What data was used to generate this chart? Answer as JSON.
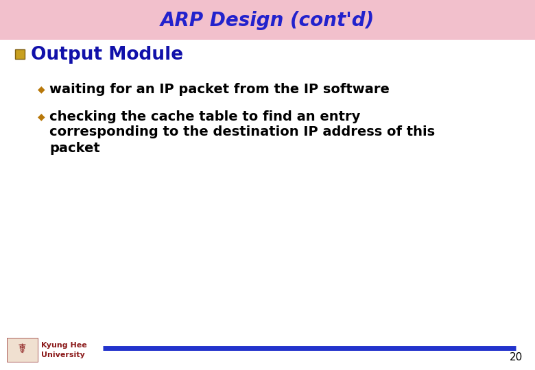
{
  "title": "ARP Design (cont'd)",
  "title_color": "#2222CC",
  "title_bg_color": "#F2C0CC",
  "title_fontsize": 20,
  "bg_color": "#FFFFFF",
  "heading": "Output Module",
  "heading_color": "#1111AA",
  "heading_fontsize": 19,
  "heading_bullet_color": "#C8A020",
  "bullet_color": "#B8780A",
  "bullet_points_line1": "waiting for an IP packet from the IP software",
  "bullet_points_line2_l1": "checking the cache table to find an entry",
  "bullet_points_line2_l2": "corresponding to the destination IP address of this",
  "bullet_points_line2_l3": "packet",
  "bullet_fontsize": 14,
  "footer_line_color": "#2233CC",
  "footer_text": "20",
  "footer_text_color": "#000000",
  "university_text_line1": "Kyung Hee",
  "university_text_line2": "University",
  "university_text_color": "#8B1A1A"
}
